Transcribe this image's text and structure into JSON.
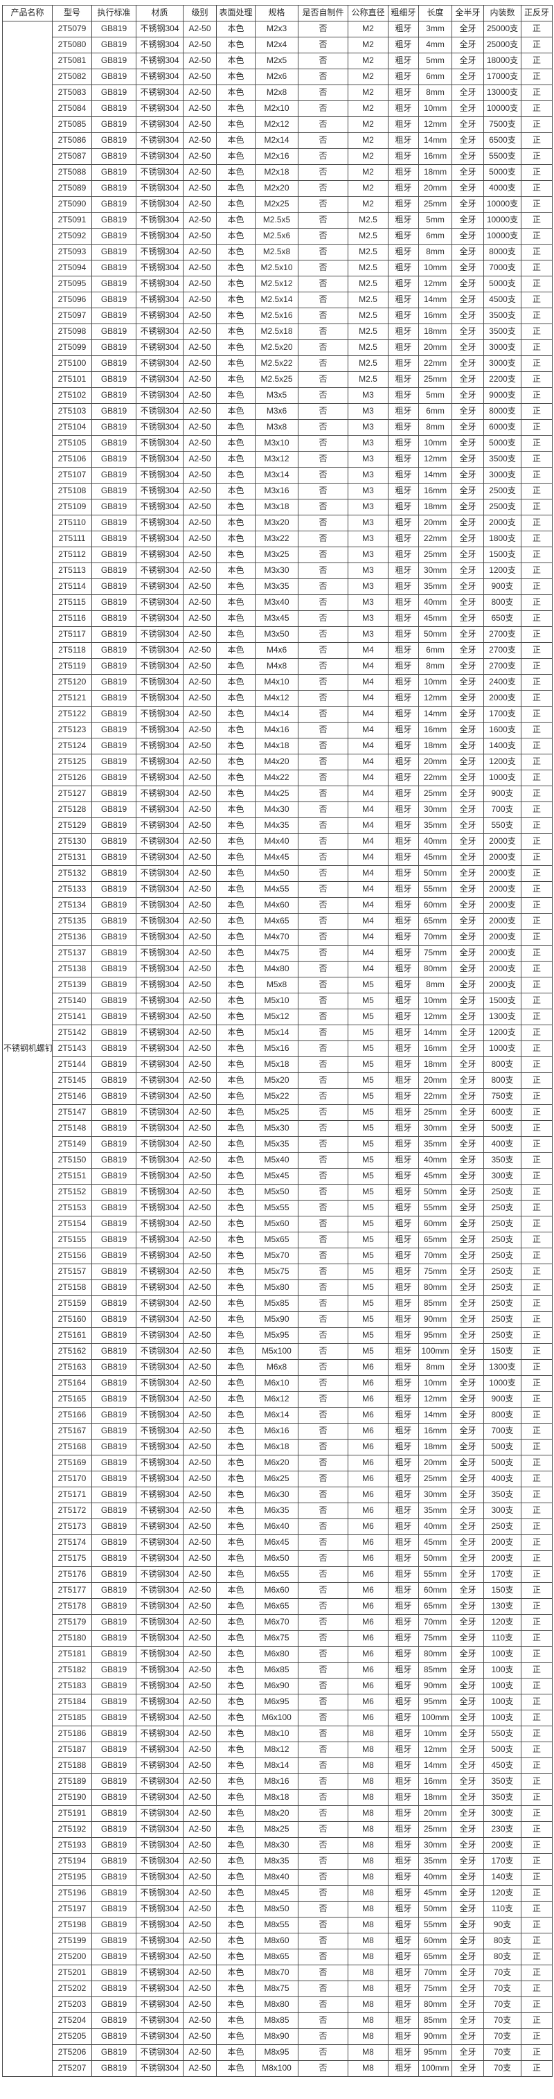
{
  "table": {
    "product_name": "不锈钢机螺钉",
    "headers": [
      "产品名称",
      "型号",
      "执行标准",
      "材质",
      "级别",
      "表面处理",
      "规格",
      "是否自制件",
      "公称直径",
      "粗细牙",
      "长度",
      "全半牙",
      "内装数",
      "正反牙"
    ],
    "common": {
      "standard": "GB819",
      "material": "不锈钢304",
      "grade": "A2-50",
      "surface": "本色",
      "self_made": "否",
      "thread_type": "粗牙",
      "thread_coverage": "全牙",
      "thread_direction": "正"
    },
    "rows": [
      [
        "2T5079",
        "M2x3",
        "M2",
        "3mm",
        "25000支"
      ],
      [
        "2T5080",
        "M2x4",
        "M2",
        "4mm",
        "25000支"
      ],
      [
        "2T5081",
        "M2x5",
        "M2",
        "5mm",
        "18000支"
      ],
      [
        "2T5082",
        "M2x6",
        "M2",
        "6mm",
        "17000支"
      ],
      [
        "2T5083",
        "M2x8",
        "M2",
        "8mm",
        "13000支"
      ],
      [
        "2T5084",
        "M2x10",
        "M2",
        "10mm",
        "10000支"
      ],
      [
        "2T5085",
        "M2x12",
        "M2",
        "12mm",
        "7500支"
      ],
      [
        "2T5086",
        "M2x14",
        "M2",
        "14mm",
        "6500支"
      ],
      [
        "2T5087",
        "M2x16",
        "M2",
        "16mm",
        "5500支"
      ],
      [
        "2T5088",
        "M2x18",
        "M2",
        "18mm",
        "5000支"
      ],
      [
        "2T5089",
        "M2x20",
        "M2",
        "20mm",
        "4000支"
      ],
      [
        "2T5090",
        "M2x25",
        "M2",
        "25mm",
        "10000支"
      ],
      [
        "2T5091",
        "M2.5x5",
        "M2.5",
        "5mm",
        "10000支"
      ],
      [
        "2T5092",
        "M2.5x6",
        "M2.5",
        "6mm",
        "10000支"
      ],
      [
        "2T5093",
        "M2.5x8",
        "M2.5",
        "8mm",
        "8000支"
      ],
      [
        "2T5094",
        "M2.5x10",
        "M2.5",
        "10mm",
        "7000支"
      ],
      [
        "2T5095",
        "M2.5x12",
        "M2.5",
        "12mm",
        "5000支"
      ],
      [
        "2T5096",
        "M2.5x14",
        "M2.5",
        "14mm",
        "4500支"
      ],
      [
        "2T5097",
        "M2.5x16",
        "M2.5",
        "16mm",
        "3500支"
      ],
      [
        "2T5098",
        "M2.5x18",
        "M2.5",
        "18mm",
        "3500支"
      ],
      [
        "2T5099",
        "M2.5x20",
        "M2.5",
        "20mm",
        "3000支"
      ],
      [
        "2T5100",
        "M2.5x22",
        "M2.5",
        "22mm",
        "3000支"
      ],
      [
        "2T5101",
        "M2.5x25",
        "M2.5",
        "25mm",
        "2200支"
      ],
      [
        "2T5102",
        "M3x5",
        "M3",
        "5mm",
        "9000支"
      ],
      [
        "2T5103",
        "M3x6",
        "M3",
        "6mm",
        "8000支"
      ],
      [
        "2T5104",
        "M3x8",
        "M3",
        "8mm",
        "6000支"
      ],
      [
        "2T5105",
        "M3x10",
        "M3",
        "10mm",
        "5000支"
      ],
      [
        "2T5106",
        "M3x12",
        "M3",
        "12mm",
        "3500支"
      ],
      [
        "2T5107",
        "M3x14",
        "M3",
        "14mm",
        "3000支"
      ],
      [
        "2T5108",
        "M3x16",
        "M3",
        "16mm",
        "2500支"
      ],
      [
        "2T5109",
        "M3x18",
        "M3",
        "18mm",
        "2500支"
      ],
      [
        "2T5110",
        "M3x20",
        "M3",
        "20mm",
        "2000支"
      ],
      [
        "2T5111",
        "M3x22",
        "M3",
        "22mm",
        "1800支"
      ],
      [
        "2T5112",
        "M3x25",
        "M3",
        "25mm",
        "1500支"
      ],
      [
        "2T5113",
        "M3x30",
        "M3",
        "30mm",
        "1200支"
      ],
      [
        "2T5114",
        "M3x35",
        "M3",
        "35mm",
        "900支"
      ],
      [
        "2T5115",
        "M3x40",
        "M3",
        "40mm",
        "800支"
      ],
      [
        "2T5116",
        "M3x45",
        "M3",
        "45mm",
        "650支"
      ],
      [
        "2T5117",
        "M3x50",
        "M3",
        "50mm",
        "2700支"
      ],
      [
        "2T5118",
        "M4x6",
        "M4",
        "6mm",
        "2700支"
      ],
      [
        "2T5119",
        "M4x8",
        "M4",
        "8mm",
        "2700支"
      ],
      [
        "2T5120",
        "M4x10",
        "M4",
        "10mm",
        "2400支"
      ],
      [
        "2T5121",
        "M4x12",
        "M4",
        "12mm",
        "2000支"
      ],
      [
        "2T5122",
        "M4x14",
        "M4",
        "14mm",
        "1700支"
      ],
      [
        "2T5123",
        "M4x16",
        "M4",
        "16mm",
        "1600支"
      ],
      [
        "2T5124",
        "M4x18",
        "M4",
        "18mm",
        "1400支"
      ],
      [
        "2T5125",
        "M4x20",
        "M4",
        "20mm",
        "1200支"
      ],
      [
        "2T5126",
        "M4x22",
        "M4",
        "22mm",
        "1000支"
      ],
      [
        "2T5127",
        "M4x25",
        "M4",
        "25mm",
        "900支"
      ],
      [
        "2T5128",
        "M4x30",
        "M4",
        "30mm",
        "700支"
      ],
      [
        "2T5129",
        "M4x35",
        "M4",
        "35mm",
        "550支"
      ],
      [
        "2T5130",
        "M4x40",
        "M4",
        "40mm",
        "2000支"
      ],
      [
        "2T5131",
        "M4x45",
        "M4",
        "45mm",
        "2000支"
      ],
      [
        "2T5132",
        "M4x50",
        "M4",
        "50mm",
        "2000支"
      ],
      [
        "2T5133",
        "M4x55",
        "M4",
        "55mm",
        "2000支"
      ],
      [
        "2T5134",
        "M4x60",
        "M4",
        "60mm",
        "2000支"
      ],
      [
        "2T5135",
        "M4x65",
        "M4",
        "65mm",
        "2000支"
      ],
      [
        "2T5136",
        "M4x70",
        "M4",
        "70mm",
        "2000支"
      ],
      [
        "2T5137",
        "M4x75",
        "M4",
        "75mm",
        "2000支"
      ],
      [
        "2T5138",
        "M4x80",
        "M4",
        "80mm",
        "2000支"
      ],
      [
        "2T5139",
        "M5x8",
        "M5",
        "8mm",
        "2000支"
      ],
      [
        "2T5140",
        "M5x10",
        "M5",
        "10mm",
        "1500支"
      ],
      [
        "2T5141",
        "M5x12",
        "M5",
        "12mm",
        "1300支"
      ],
      [
        "2T5142",
        "M5x14",
        "M5",
        "14mm",
        "1200支"
      ],
      [
        "2T5143",
        "M5x16",
        "M5",
        "16mm",
        "1000支"
      ],
      [
        "2T5144",
        "M5x18",
        "M5",
        "18mm",
        "800支"
      ],
      [
        "2T5145",
        "M5x20",
        "M5",
        "20mm",
        "800支"
      ],
      [
        "2T5146",
        "M5x22",
        "M5",
        "22mm",
        "750支"
      ],
      [
        "2T5147",
        "M5x25",
        "M5",
        "25mm",
        "600支"
      ],
      [
        "2T5148",
        "M5x30",
        "M5",
        "30mm",
        "500支"
      ],
      [
        "2T5149",
        "M5x35",
        "M5",
        "35mm",
        "400支"
      ],
      [
        "2T5150",
        "M5x40",
        "M5",
        "40mm",
        "350支"
      ],
      [
        "2T5151",
        "M5x45",
        "M5",
        "45mm",
        "300支"
      ],
      [
        "2T5152",
        "M5x50",
        "M5",
        "50mm",
        "250支"
      ],
      [
        "2T5153",
        "M5x55",
        "M5",
        "55mm",
        "250支"
      ],
      [
        "2T5154",
        "M5x60",
        "M5",
        "60mm",
        "250支"
      ],
      [
        "2T5155",
        "M5x65",
        "M5",
        "65mm",
        "250支"
      ],
      [
        "2T5156",
        "M5x70",
        "M5",
        "70mm",
        "250支"
      ],
      [
        "2T5157",
        "M5x75",
        "M5",
        "75mm",
        "250支"
      ],
      [
        "2T5158",
        "M5x80",
        "M5",
        "80mm",
        "250支"
      ],
      [
        "2T5159",
        "M5x85",
        "M5",
        "85mm",
        "250支"
      ],
      [
        "2T5160",
        "M5x90",
        "M5",
        "90mm",
        "250支"
      ],
      [
        "2T5161",
        "M5x95",
        "M5",
        "95mm",
        "250支"
      ],
      [
        "2T5162",
        "M5x100",
        "M5",
        "100mm",
        "150支"
      ],
      [
        "2T5163",
        "M6x8",
        "M6",
        "8mm",
        "1300支"
      ],
      [
        "2T5164",
        "M6x10",
        "M6",
        "10mm",
        "1000支"
      ],
      [
        "2T5165",
        "M6x12",
        "M6",
        "12mm",
        "900支"
      ],
      [
        "2T5166",
        "M6x14",
        "M6",
        "14mm",
        "800支"
      ],
      [
        "2T5167",
        "M6x16",
        "M6",
        "16mm",
        "700支"
      ],
      [
        "2T5168",
        "M6x18",
        "M6",
        "18mm",
        "500支"
      ],
      [
        "2T5169",
        "M6x20",
        "M6",
        "20mm",
        "500支"
      ],
      [
        "2T5170",
        "M6x25",
        "M6",
        "25mm",
        "400支"
      ],
      [
        "2T5171",
        "M6x30",
        "M6",
        "30mm",
        "350支"
      ],
      [
        "2T5172",
        "M6x35",
        "M6",
        "35mm",
        "300支"
      ],
      [
        "2T5173",
        "M6x40",
        "M6",
        "40mm",
        "250支"
      ],
      [
        "2T5174",
        "M6x45",
        "M6",
        "45mm",
        "200支"
      ],
      [
        "2T5175",
        "M6x50",
        "M6",
        "50mm",
        "200支"
      ],
      [
        "2T5176",
        "M6x55",
        "M6",
        "55mm",
        "170支"
      ],
      [
        "2T5177",
        "M6x60",
        "M6",
        "60mm",
        "150支"
      ],
      [
        "2T5178",
        "M6x65",
        "M6",
        "65mm",
        "130支"
      ],
      [
        "2T5179",
        "M6x70",
        "M6",
        "70mm",
        "120支"
      ],
      [
        "2T5180",
        "M6x75",
        "M6",
        "75mm",
        "110支"
      ],
      [
        "2T5181",
        "M6x80",
        "M6",
        "80mm",
        "100支"
      ],
      [
        "2T5182",
        "M6x85",
        "M6",
        "85mm",
        "100支"
      ],
      [
        "2T5183",
        "M6x90",
        "M6",
        "90mm",
        "100支"
      ],
      [
        "2T5184",
        "M6x95",
        "M6",
        "95mm",
        "100支"
      ],
      [
        "2T5185",
        "M6x100",
        "M6",
        "100mm",
        "100支"
      ],
      [
        "2T5186",
        "M8x10",
        "M8",
        "10mm",
        "550支"
      ],
      [
        "2T5187",
        "M8x12",
        "M8",
        "12mm",
        "500支"
      ],
      [
        "2T5188",
        "M8x14",
        "M8",
        "14mm",
        "450支"
      ],
      [
        "2T5189",
        "M8x16",
        "M8",
        "16mm",
        "350支"
      ],
      [
        "2T5190",
        "M8x18",
        "M8",
        "18mm",
        "350支"
      ],
      [
        "2T5191",
        "M8x20",
        "M8",
        "20mm",
        "300支"
      ],
      [
        "2T5192",
        "M8x25",
        "M8",
        "25mm",
        "230支"
      ],
      [
        "2T5193",
        "M8x30",
        "M8",
        "30mm",
        "200支"
      ],
      [
        "2T5194",
        "M8x35",
        "M8",
        "35mm",
        "170支"
      ],
      [
        "2T5195",
        "M8x40",
        "M8",
        "40mm",
        "140支"
      ],
      [
        "2T5196",
        "M8x45",
        "M8",
        "45mm",
        "120支"
      ],
      [
        "2T5197",
        "M8x50",
        "M8",
        "50mm",
        "110支"
      ],
      [
        "2T5198",
        "M8x55",
        "M8",
        "55mm",
        "90支"
      ],
      [
        "2T5199",
        "M8x60",
        "M8",
        "60mm",
        "80支"
      ],
      [
        "2T5200",
        "M8x65",
        "M8",
        "65mm",
        "80支"
      ],
      [
        "2T5201",
        "M8x70",
        "M8",
        "70mm",
        "70支"
      ],
      [
        "2T5202",
        "M8x75",
        "M8",
        "75mm",
        "70支"
      ],
      [
        "2T5203",
        "M8x80",
        "M8",
        "80mm",
        "70支"
      ],
      [
        "2T5204",
        "M8x85",
        "M8",
        "85mm",
        "70支"
      ],
      [
        "2T5205",
        "M8x90",
        "M8",
        "90mm",
        "70支"
      ],
      [
        "2T5206",
        "M8x95",
        "M8",
        "95mm",
        "70支"
      ],
      [
        "2T5207",
        "M8x100",
        "M8",
        "100mm",
        "70支"
      ]
    ]
  }
}
